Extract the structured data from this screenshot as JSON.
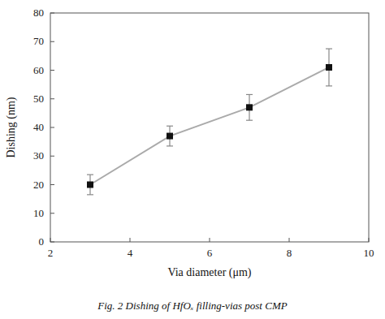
{
  "chart_data": {
    "type": "line",
    "x": [
      3,
      5,
      7,
      9
    ],
    "values": [
      20,
      37,
      47,
      61
    ],
    "errors": [
      3.5,
      3.5,
      4.5,
      6.5
    ],
    "xlim": [
      2,
      10
    ],
    "ylim": [
      0,
      80
    ],
    "xticks": [
      2,
      4,
      6,
      8,
      10
    ],
    "yticks": [
      0,
      10,
      20,
      30,
      40,
      50,
      60,
      70,
      80
    ],
    "x_label": "Via diameter (μm)",
    "y_label": "Dishing (nm)",
    "caption": "Fig. 2 Dishing of HfOₓ filling-vias post CMP",
    "color": "#111111",
    "marker": "square"
  }
}
